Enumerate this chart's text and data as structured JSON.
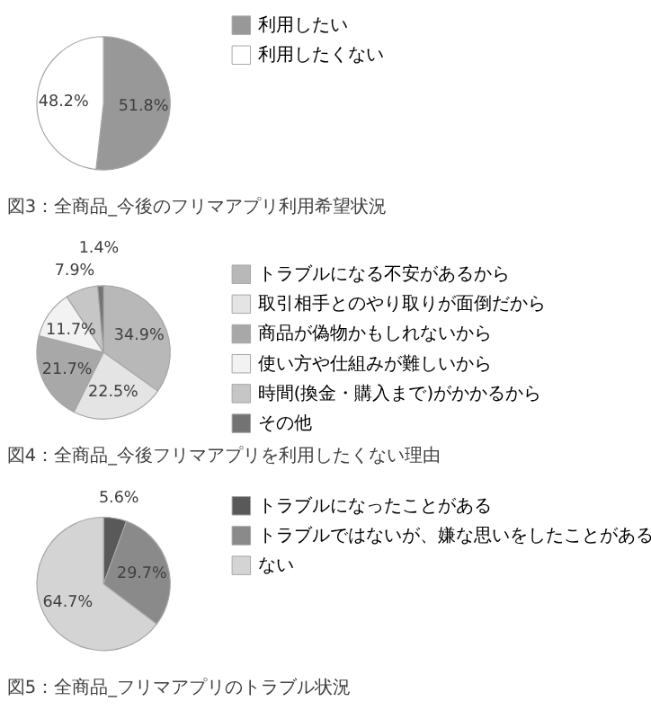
{
  "chart_data": [
    {
      "type": "pie",
      "title": "図3：全商品_今後のフリマアプリ利用希望状況",
      "categories": [
        "利用したい",
        "利用したくない"
      ],
      "values": [
        51.8,
        48.2
      ],
      "colors": [
        "#989898",
        "#ffffff"
      ],
      "value_labels": [
        "51.8%",
        "48.2%"
      ],
      "legend": "right"
    },
    {
      "type": "pie",
      "title": "図4：全商品_今後フリマアプリを利用したくない理由",
      "categories": [
        "トラブルになる不安があるから",
        "取引相手とのやり取りが面倒だから",
        "商品が偽物かもしれないから",
        "使い方や仕組みが難しいから",
        "時間(換金・購入まで)がかかるから",
        "その他"
      ],
      "values": [
        34.9,
        22.5,
        21.7,
        11.7,
        7.9,
        1.4
      ],
      "colors": [
        "#b8b8b8",
        "#e4e4e4",
        "#a8a8a8",
        "#f2f2f2",
        "#c6c6c6",
        "#737373"
      ],
      "value_labels": [
        "34.9%",
        "22.5%",
        "21.7%",
        "11.7%",
        "7.9%",
        "1.4%"
      ],
      "legend": "right"
    },
    {
      "type": "pie",
      "title": "図5：全商品_フリマアプリのトラブル状況",
      "categories": [
        "トラブルになったことがある",
        "トラブルではないが、嫌な思いをしたことがある",
        "ない"
      ],
      "values": [
        5.6,
        29.7,
        64.7
      ],
      "colors": [
        "#595959",
        "#8a8a8a",
        "#d4d4d4"
      ],
      "value_labels": [
        "5.6%",
        "29.7%",
        "64.7%"
      ],
      "legend": "right"
    }
  ]
}
